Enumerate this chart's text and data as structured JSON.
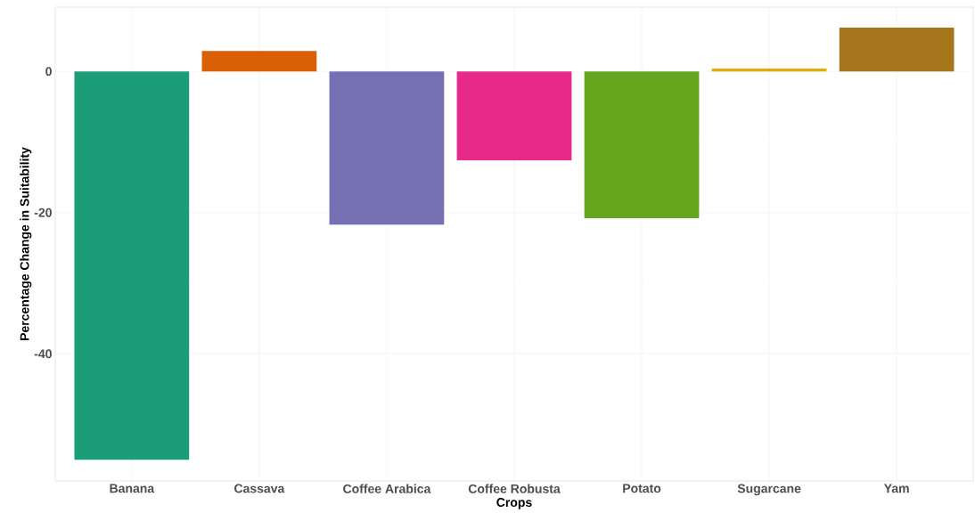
{
  "chart_data": {
    "type": "bar",
    "xlabel": "Crops",
    "ylabel": "Percentage Change in Suitability",
    "categories": [
      "Banana",
      "Cassava",
      "Coffee Arabica",
      "Coffee Robusta",
      "Potato",
      "Sugarcane",
      "Yam"
    ],
    "values": [
      -55.0,
      2.9,
      -21.7,
      -12.6,
      -20.8,
      0.4,
      6.2
    ],
    "colors": [
      "#1b9e77",
      "#d95f02",
      "#7570b3",
      "#e7298a",
      "#66a61e",
      "#e6ab02",
      "#a6761d"
    ],
    "ylim": [
      -58,
      9.1
    ],
    "yticks": [
      0,
      -20,
      -40
    ],
    "grid": true
  }
}
